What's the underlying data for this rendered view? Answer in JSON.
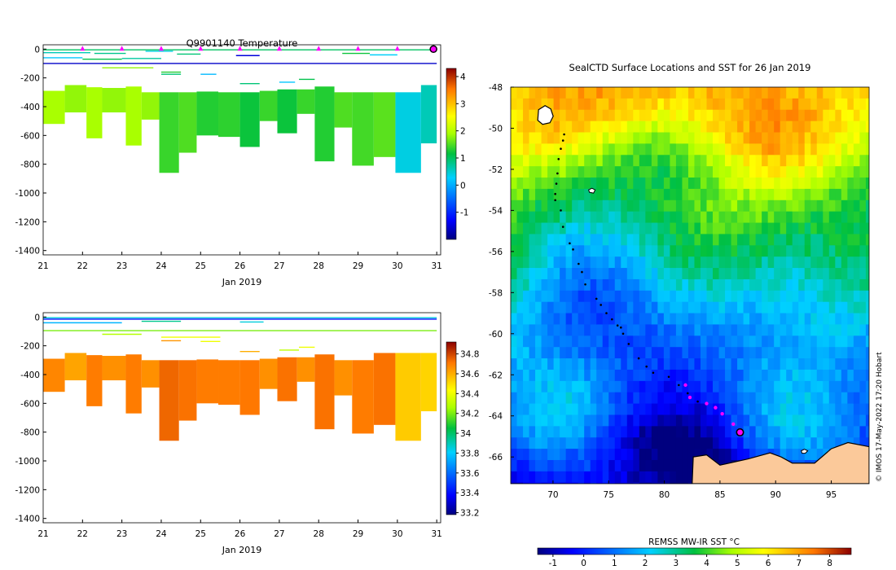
{
  "chart_data": [
    {
      "type": "heatmap",
      "title": "Q9901140  Temperature",
      "xlabel": "Jan 2019",
      "xlim": [
        21,
        31.1
      ],
      "ylim": [
        -1430,
        30
      ],
      "xticks": [
        21,
        22,
        23,
        24,
        25,
        26,
        27,
        28,
        29,
        30,
        31
      ],
      "yticks": [
        0,
        -200,
        -400,
        -600,
        -800,
        -1000,
        -1200,
        -1400
      ],
      "colorbar": {
        "min": -2,
        "max": 4.3,
        "ticks": [
          4,
          3,
          2,
          1,
          0,
          -1
        ]
      },
      "surface_markers": [
        22,
        23,
        24,
        25,
        26,
        27,
        28,
        29,
        30
      ],
      "current_marker": 31,
      "profiles": [
        {
          "x0": 21.0,
          "x1": 21.55,
          "top": -290,
          "bottom": -520,
          "value": 1.9
        },
        {
          "x0": 21.55,
          "x1": 22.1,
          "top": -250,
          "bottom": -440,
          "value": 1.8
        },
        {
          "x0": 22.1,
          "x1": 22.5,
          "top": -265,
          "bottom": -620,
          "value": 1.9
        },
        {
          "x0": 22.5,
          "x1": 23.1,
          "top": -270,
          "bottom": -440,
          "value": 1.8
        },
        {
          "x0": 23.1,
          "x1": 23.5,
          "top": -260,
          "bottom": -670,
          "value": 1.9
        },
        {
          "x0": 23.5,
          "x1": 23.95,
          "top": -300,
          "bottom": -490,
          "value": 1.8
        },
        {
          "x0": 23.95,
          "x1": 24.45,
          "top": -300,
          "bottom": -860,
          "value": 1.4
        },
        {
          "x0": 24.45,
          "x1": 24.9,
          "top": -300,
          "bottom": -720,
          "value": 1.5
        },
        {
          "x0": 24.9,
          "x1": 25.45,
          "top": -295,
          "bottom": -600,
          "value": 1.3
        },
        {
          "x0": 25.45,
          "x1": 26.0,
          "top": -300,
          "bottom": -610,
          "value": 1.35
        },
        {
          "x0": 26.0,
          "x1": 26.5,
          "top": -300,
          "bottom": -680,
          "value": 1.2
        },
        {
          "x0": 26.5,
          "x1": 26.95,
          "top": -290,
          "bottom": -500,
          "value": 1.4
        },
        {
          "x0": 26.95,
          "x1": 27.45,
          "top": -280,
          "bottom": -585,
          "value": 1.2
        },
        {
          "x0": 27.45,
          "x1": 27.9,
          "top": -280,
          "bottom": -450,
          "value": 1.4
        },
        {
          "x0": 27.9,
          "x1": 28.4,
          "top": -260,
          "bottom": -780,
          "value": 1.3
        },
        {
          "x0": 28.4,
          "x1": 28.85,
          "top": -300,
          "bottom": -545,
          "value": 1.5
        },
        {
          "x0": 28.85,
          "x1": 29.4,
          "top": -300,
          "bottom": -810,
          "value": 1.45
        },
        {
          "x0": 29.4,
          "x1": 29.95,
          "top": -300,
          "bottom": -750,
          "value": 1.55
        },
        {
          "x0": 29.95,
          "x1": 30.6,
          "top": -300,
          "bottom": -860,
          "value": 0.4
        },
        {
          "x0": 30.6,
          "x1": 31.0,
          "top": -250,
          "bottom": -655,
          "value": 0.6
        }
      ],
      "surface_lines": [
        {
          "x0": 21.0,
          "x1": 31.0,
          "depth": -5,
          "value": 1.0
        },
        {
          "x0": 21.0,
          "x1": 22.2,
          "depth": -25,
          "value": 0.6
        },
        {
          "x0": 22.3,
          "x1": 23.1,
          "depth": -30,
          "value": 0.8
        },
        {
          "x0": 23.6,
          "x1": 24.3,
          "depth": -15,
          "value": 0.4
        },
        {
          "x0": 24.4,
          "x1": 25.0,
          "depth": -35,
          "value": 0.9
        },
        {
          "x0": 25.9,
          "x1": 26.5,
          "depth": -45,
          "value": -1.5
        },
        {
          "x0": 28.6,
          "x1": 29.3,
          "depth": -30,
          "value": 1.2
        },
        {
          "x0": 29.3,
          "x1": 30.0,
          "depth": -40,
          "value": 0.3
        },
        {
          "x0": 21.0,
          "x1": 22.0,
          "depth": -60,
          "value": 0.2
        },
        {
          "x0": 22.0,
          "x1": 23.0,
          "depth": -70,
          "value": 1.1
        },
        {
          "x0": 23.0,
          "x1": 24.0,
          "depth": -65,
          "value": 0.7
        },
        {
          "x0": 21.0,
          "x1": 31.0,
          "depth": -100,
          "value": -1.6
        },
        {
          "x0": 22.5,
          "x1": 23.8,
          "depth": -130,
          "value": 1.8
        },
        {
          "x0": 24.0,
          "x1": 24.5,
          "depth": -160,
          "value": 1.3
        },
        {
          "x0": 24.0,
          "x1": 24.5,
          "depth": -175,
          "value": 0.9
        },
        {
          "x0": 25.0,
          "x1": 25.4,
          "depth": -175,
          "value": 0.1
        },
        {
          "x0": 26.0,
          "x1": 26.5,
          "depth": -240,
          "value": 0.9
        },
        {
          "x0": 27.0,
          "x1": 27.4,
          "depth": -230,
          "value": 0.2
        },
        {
          "x0": 27.5,
          "x1": 27.9,
          "depth": -210,
          "value": 1.1
        }
      ]
    },
    {
      "type": "heatmap",
      "title": "",
      "xlabel": "Jan 2019",
      "xlim": [
        21,
        31.1
      ],
      "ylim": [
        -1430,
        30
      ],
      "xticks": [
        21,
        22,
        23,
        24,
        25,
        26,
        27,
        28,
        29,
        30,
        31
      ],
      "yticks": [
        0,
        -200,
        -400,
        -600,
        -800,
        -1000,
        -1200,
        -1400
      ],
      "colorbar": {
        "min": 33.18,
        "max": 34.92,
        "ticks": [
          34.8,
          34.6,
          34.4,
          34.2,
          34,
          33.8,
          33.6,
          33.4,
          33.2
        ],
        "tick_labels": [
          "34.8",
          "34.6",
          "34.4",
          "34.2",
          "34",
          "33.8",
          "33.6",
          "33.4",
          "33.2"
        ]
      },
      "profiles": [
        {
          "x0": 21.0,
          "x1": 21.55,
          "top": -290,
          "bottom": -520,
          "value": 34.68
        },
        {
          "x0": 21.55,
          "x1": 22.1,
          "top": -250,
          "bottom": -440,
          "value": 34.62
        },
        {
          "x0": 22.1,
          "x1": 22.5,
          "top": -265,
          "bottom": -620,
          "value": 34.7
        },
        {
          "x0": 22.5,
          "x1": 23.1,
          "top": -270,
          "bottom": -440,
          "value": 34.66
        },
        {
          "x0": 23.1,
          "x1": 23.5,
          "top": -260,
          "bottom": -670,
          "value": 34.7
        },
        {
          "x0": 23.5,
          "x1": 23.95,
          "top": -300,
          "bottom": -490,
          "value": 34.66
        },
        {
          "x0": 23.95,
          "x1": 24.45,
          "top": -300,
          "bottom": -860,
          "value": 34.74
        },
        {
          "x0": 24.45,
          "x1": 24.9,
          "top": -300,
          "bottom": -720,
          "value": 34.72
        },
        {
          "x0": 24.9,
          "x1": 25.45,
          "top": -295,
          "bottom": -600,
          "value": 34.7
        },
        {
          "x0": 25.45,
          "x1": 26.0,
          "top": -300,
          "bottom": -610,
          "value": 34.7
        },
        {
          "x0": 26.0,
          "x1": 26.5,
          "top": -300,
          "bottom": -680,
          "value": 34.71
        },
        {
          "x0": 26.5,
          "x1": 26.95,
          "top": -290,
          "bottom": -500,
          "value": 34.66
        },
        {
          "x0": 26.95,
          "x1": 27.45,
          "top": -280,
          "bottom": -585,
          "value": 34.72
        },
        {
          "x0": 27.45,
          "x1": 27.9,
          "top": -280,
          "bottom": -450,
          "value": 34.66
        },
        {
          "x0": 27.9,
          "x1": 28.4,
          "top": -260,
          "bottom": -780,
          "value": 34.72
        },
        {
          "x0": 28.4,
          "x1": 28.85,
          "top": -300,
          "bottom": -545,
          "value": 34.66
        },
        {
          "x0": 28.85,
          "x1": 29.4,
          "top": -300,
          "bottom": -810,
          "value": 34.7
        },
        {
          "x0": 29.4,
          "x1": 29.95,
          "top": -250,
          "bottom": -750,
          "value": 34.72
        },
        {
          "x0": 29.95,
          "x1": 30.6,
          "top": -250,
          "bottom": -860,
          "value": 34.54
        },
        {
          "x0": 30.6,
          "x1": 31.0,
          "top": -250,
          "bottom": -655,
          "value": 34.52
        }
      ],
      "surface_lines": [
        {
          "x0": 21.0,
          "x1": 31.0,
          "depth": -5,
          "value": 33.85
        },
        {
          "x0": 21.0,
          "x1": 31.0,
          "depth": -15,
          "value": 33.4
        },
        {
          "x0": 21.0,
          "x1": 23.0,
          "depth": -40,
          "value": 33.75
        },
        {
          "x0": 23.5,
          "x1": 24.5,
          "depth": -30,
          "value": 33.95
        },
        {
          "x0": 26.0,
          "x1": 26.6,
          "depth": -35,
          "value": 33.85
        },
        {
          "x0": 21.0,
          "x1": 31.0,
          "depth": -95,
          "value": 34.2
        },
        {
          "x0": 22.5,
          "x1": 23.5,
          "depth": -120,
          "value": 34.28
        },
        {
          "x0": 24.0,
          "x1": 25.5,
          "depth": -140,
          "value": 34.4
        },
        {
          "x0": 24.0,
          "x1": 24.5,
          "depth": -165,
          "value": 34.65
        },
        {
          "x0": 25.0,
          "x1": 25.5,
          "depth": -170,
          "value": 34.4
        },
        {
          "x0": 26.0,
          "x1": 26.5,
          "depth": -240,
          "value": 34.6
        },
        {
          "x0": 27.0,
          "x1": 27.5,
          "depth": -230,
          "value": 34.3
        },
        {
          "x0": 27.5,
          "x1": 27.9,
          "depth": -210,
          "value": 34.4
        }
      ]
    },
    {
      "type": "heatmap",
      "title": "SealCTD Surface Locations and SST for 26 Jan 2019",
      "xlabel": "",
      "ylabel": "",
      "xlim": [
        66.2,
        98.4
      ],
      "ylim": [
        -67.3,
        -48
      ],
      "xticks": [
        70,
        75,
        80,
        85,
        90,
        95
      ],
      "yticks": [
        -48,
        -50,
        -52,
        -54,
        -56,
        -58,
        -60,
        -62,
        -64,
        -66
      ],
      "colorbar": {
        "label": "REMSS MW-IR SST °C",
        "min": -1.5,
        "max": 8.7,
        "ticks": [
          -1,
          0,
          1,
          2,
          3,
          4,
          5,
          6,
          7,
          8
        ]
      },
      "sst_bands": [
        {
          "lat": -48,
          "sst": 6.8
        },
        {
          "lat": -50,
          "sst": 6.2
        },
        {
          "lat": -51.5,
          "sst": 4.9
        },
        {
          "lat": -53,
          "sst": 4.0
        },
        {
          "lat": -54.5,
          "sst": 3.6
        },
        {
          "lat": -56,
          "sst": 2.9
        },
        {
          "lat": -57.5,
          "sst": 2.2
        },
        {
          "lat": -59,
          "sst": 1.4
        },
        {
          "lat": -61,
          "sst": 1.0
        },
        {
          "lat": -63,
          "sst": 1.0
        },
        {
          "lat": -64.5,
          "sst": 0.5
        },
        {
          "lat": -66,
          "sst": -0.6
        },
        {
          "lat": -67.3,
          "sst": -1.0
        }
      ],
      "track_points": [
        [
          71.0,
          -50.3
        ],
        [
          70.9,
          -50.6
        ],
        [
          70.7,
          -51.0
        ],
        [
          70.5,
          -51.5
        ],
        [
          70.4,
          -52.2
        ],
        [
          70.3,
          -52.7
        ],
        [
          70.2,
          -53.2
        ],
        [
          70.2,
          -53.5
        ],
        [
          70.7,
          -54.0
        ],
        [
          70.9,
          -54.8
        ],
        [
          71.5,
          -55.6
        ],
        [
          71.8,
          -55.9
        ],
        [
          72.3,
          -56.6
        ],
        [
          72.6,
          -57.0
        ],
        [
          72.9,
          -57.6
        ],
        [
          73.9,
          -58.3
        ],
        [
          74.3,
          -58.6
        ],
        [
          74.8,
          -59.0
        ],
        [
          75.3,
          -59.3
        ],
        [
          75.8,
          -59.6
        ],
        [
          76.1,
          -59.7
        ],
        [
          76.3,
          -60.0
        ],
        [
          76.8,
          -60.5
        ],
        [
          77.7,
          -61.2
        ],
        [
          78.4,
          -61.6
        ],
        [
          79.0,
          -61.9
        ],
        [
          80.4,
          -62.1
        ],
        [
          81.3,
          -62.5
        ],
        [
          82.1,
          -62.9
        ],
        [
          83.0,
          -63.3
        ]
      ],
      "recent_points": [
        [
          81.9,
          -62.5
        ],
        [
          82.3,
          -63.1
        ],
        [
          83.8,
          -63.4
        ],
        [
          84.6,
          -63.6
        ],
        [
          85.2,
          -63.9
        ],
        [
          86.2,
          -64.4
        ]
      ],
      "current_location": [
        86.8,
        -64.8
      ],
      "credit": "© IMOS 17-May-2022 17:20 Hobart"
    }
  ]
}
